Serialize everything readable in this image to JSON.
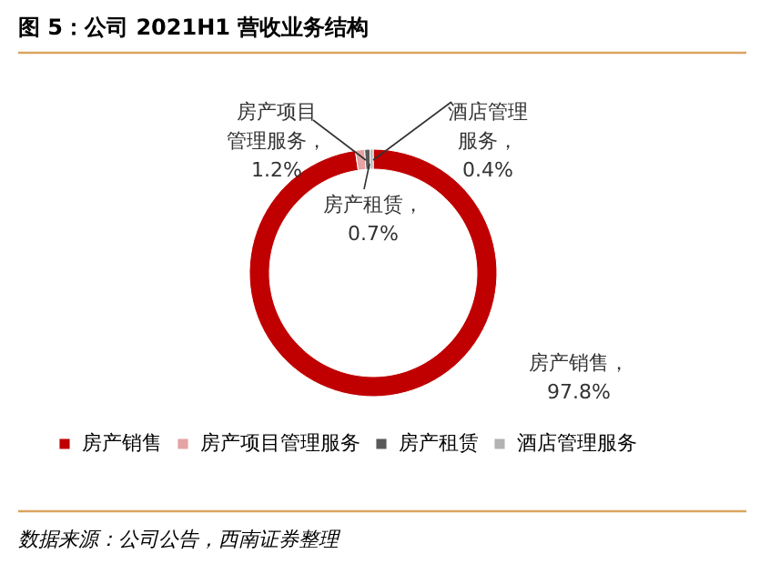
{
  "chart_data": {
    "type": "donut",
    "title": "图 5：公司 2021H1 营收业务结构",
    "categories": [
      "房产销售",
      "房产项目管理服务",
      "房产租赁",
      "酒店管理服务"
    ],
    "values": [
      97.8,
      1.2,
      0.7,
      0.4
    ],
    "colors": [
      "#c00000",
      "#e6a3a3",
      "#595959",
      "#b3b3b3"
    ],
    "value_labels": [
      "房产销售，97.8%",
      "房产项目管理服务，1.2%",
      "房产租赁，0.7%",
      "酒店管理服务，0.4%"
    ],
    "legend": "bottom",
    "annotations": [
      "数据来源：公司公告，西南证券整理"
    ]
  }
}
